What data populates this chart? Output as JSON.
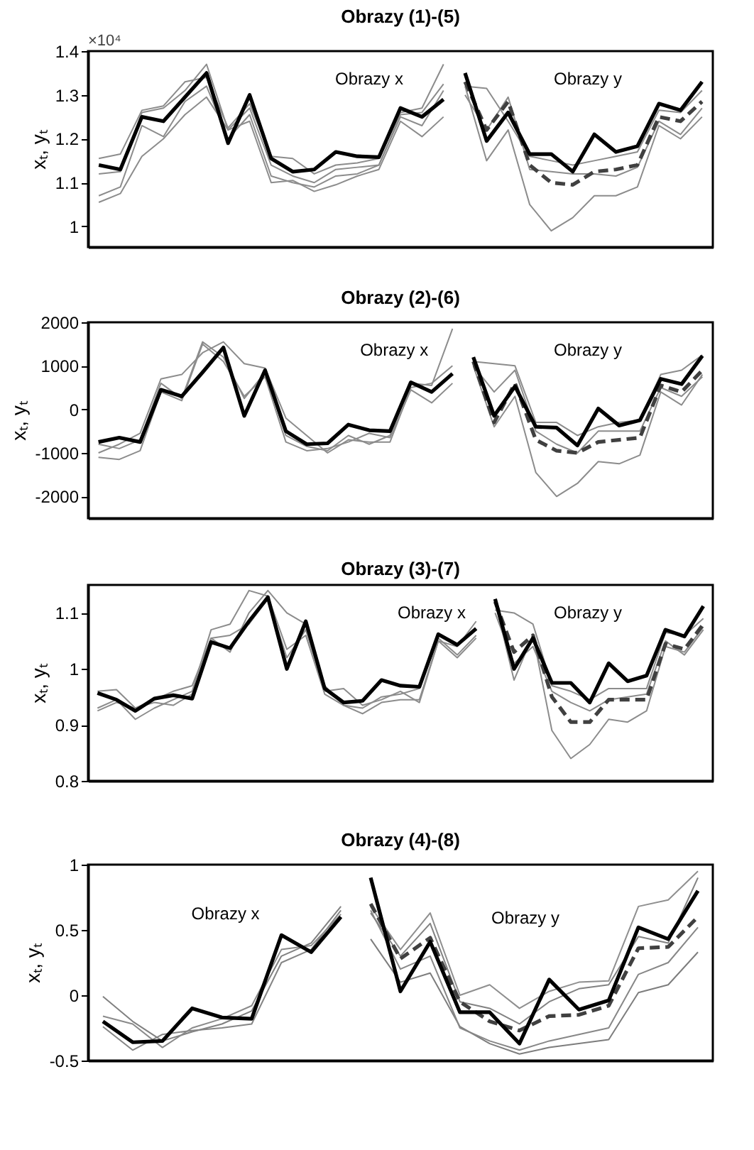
{
  "chart_data": [
    {
      "type": "line",
      "title": "Obrazy (1)-(5)",
      "ylabel": "xₜ, yₜ",
      "annotations": [
        "Obrazy x",
        "Obrazy y",
        "×10⁴"
      ],
      "categories": [
        null,
        null,
        null,
        null,
        null,
        null,
        null,
        null,
        null,
        null,
        null,
        null,
        null,
        null,
        null,
        null,
        null,
        null,
        null,
        null,
        null,
        null,
        null,
        null,
        null,
        null,
        null,
        null,
        null
      ],
      "ylim": [
        0.953,
        1.4
      ],
      "yticks": [
        1,
        1.1,
        1.2,
        1.3,
        1.4
      ],
      "tick_labels": "y",
      "grid": false,
      "series": [
        {
          "color": "#8c8c8c",
          "values": [
            1.155,
            1.165,
            1.265,
            1.275,
            1.33,
            1.34,
            1.225,
            1.28,
            1.16,
            1.155,
            1.12,
            1.14,
            1.145,
            1.155,
            1.26,
            1.27,
            1.37,
            null,
            null,
            null,
            null,
            null,
            null,
            null,
            null,
            null,
            null,
            null,
            null
          ]
        },
        {
          "color": "#8c8c8c",
          "values": [
            1.055,
            1.075,
            1.16,
            1.2,
            1.255,
            1.295,
            1.22,
            1.24,
            1.1,
            1.105,
            1.08,
            1.095,
            1.115,
            1.13,
            1.24,
            1.205,
            1.25,
            null,
            null,
            null,
            null,
            null,
            null,
            null,
            null,
            null,
            null,
            null,
            null
          ]
        },
        {
          "color": "#8c8c8c",
          "values": [
            1.07,
            1.09,
            1.23,
            1.205,
            1.285,
            1.32,
            1.2,
            1.255,
            1.115,
            1.1,
            1.09,
            1.115,
            1.12,
            1.14,
            1.25,
            1.23,
            1.31,
            null,
            null,
            null,
            null,
            null,
            null,
            null,
            null,
            null,
            null,
            null,
            null
          ]
        },
        {
          "color": "#8c8c8c",
          "values": [
            1.12,
            1.125,
            1.26,
            1.27,
            1.31,
            1.37,
            1.22,
            1.27,
            1.14,
            1.115,
            1.1,
            1.13,
            1.135,
            1.14,
            1.255,
            1.26,
            1.325,
            null,
            null,
            null,
            null,
            null,
            null,
            null,
            null,
            null,
            null,
            null,
            null
          ]
        },
        {
          "color": "#8c8c8c",
          "values": [
            null,
            null,
            null,
            null,
            null,
            null,
            null,
            null,
            null,
            null,
            null,
            null,
            null,
            null,
            null,
            null,
            null,
            1.32,
            1.15,
            1.22,
            1.05,
            0.99,
            1.02,
            1.07,
            1.07,
            1.09,
            1.23,
            1.2,
            1.25
          ]
        },
        {
          "color": "#8c8c8c",
          "values": [
            null,
            null,
            null,
            null,
            null,
            null,
            null,
            null,
            null,
            null,
            null,
            null,
            null,
            null,
            null,
            null,
            null,
            1.32,
            1.315,
            1.24,
            1.16,
            1.15,
            1.14,
            1.15,
            1.16,
            1.17,
            1.265,
            1.26,
            1.31
          ]
        },
        {
          "color": "#8c8c8c",
          "values": [
            null,
            null,
            null,
            null,
            null,
            null,
            null,
            null,
            null,
            null,
            null,
            null,
            null,
            null,
            null,
            null,
            null,
            1.3,
            1.22,
            1.295,
            1.13,
            1.125,
            1.12,
            1.12,
            1.115,
            1.135,
            1.24,
            1.21,
            1.27
          ]
        },
        {
          "color": "#404040",
          "line_style": "dashed",
          "values": [
            null,
            null,
            null,
            null,
            null,
            null,
            null,
            null,
            null,
            null,
            null,
            null,
            null,
            null,
            null,
            null,
            null,
            1.33,
            1.22,
            1.285,
            1.14,
            1.1,
            1.095,
            1.125,
            1.13,
            1.14,
            1.25,
            1.24,
            1.285
          ]
        },
        {
          "color": "#000000",
          "values": [
            1.14,
            1.13,
            1.25,
            1.24,
            1.295,
            1.35,
            1.19,
            1.3,
            1.155,
            1.125,
            1.13,
            1.17,
            1.16,
            1.158,
            1.27,
            1.25,
            1.29,
            null,
            null,
            null,
            null,
            null,
            null,
            null,
            null,
            null,
            null,
            null,
            null
          ]
        },
        {
          "color": "#000000",
          "values": [
            null,
            null,
            null,
            null,
            null,
            null,
            null,
            null,
            null,
            null,
            null,
            null,
            null,
            null,
            null,
            null,
            null,
            1.35,
            1.195,
            1.26,
            1.165,
            1.165,
            1.125,
            1.21,
            1.17,
            1.183,
            1.28,
            1.265,
            1.33
          ]
        }
      ]
    },
    {
      "type": "line",
      "title": "Obrazy (2)-(6)",
      "ylabel": "xₜ, yₜ",
      "annotations": [
        "Obrazy x",
        "Obrazy y"
      ],
      "categories": [
        null,
        null,
        null,
        null,
        null,
        null,
        null,
        null,
        null,
        null,
        null,
        null,
        null,
        null,
        null,
        null,
        null,
        null,
        null,
        null,
        null,
        null,
        null,
        null,
        null,
        null,
        null,
        null,
        null,
        null
      ],
      "ylim": [
        -2500,
        2000
      ],
      "yticks": [
        -2000,
        -1000,
        0,
        1000,
        2000
      ],
      "tick_labels": "y",
      "grid": false,
      "series": [
        {
          "color": "#8c8c8c",
          "values": [
            -1000,
            -800,
            -550,
            700,
            800,
            1300,
            1550,
            1050,
            950,
            -200,
            -600,
            -1000,
            -700,
            -750,
            -750,
            500,
            600,
            1000,
            null,
            null,
            null,
            null,
            null,
            null,
            null,
            null,
            null,
            null,
            null,
            null
          ]
        },
        {
          "color": "#8c8c8c",
          "values": [
            -1100,
            -1150,
            -950,
            400,
            200,
            1500,
            1100,
            300,
            750,
            -750,
            -950,
            -900,
            -750,
            -550,
            -650,
            450,
            150,
            600,
            null,
            null,
            null,
            null,
            null,
            null,
            null,
            null,
            null,
            null,
            null,
            null
          ]
        },
        {
          "color": "#8c8c8c",
          "values": [
            -800,
            -900,
            -700,
            600,
            250,
            1550,
            1200,
            250,
            850,
            -600,
            -850,
            -950,
            -600,
            -800,
            -600,
            600,
            550,
            1850,
            null,
            null,
            null,
            null,
            null,
            null,
            null,
            null,
            null,
            null,
            null,
            null
          ]
        },
        {
          "color": "#8c8c8c",
          "values": [
            null,
            null,
            null,
            null,
            null,
            null,
            null,
            null,
            null,
            null,
            null,
            null,
            null,
            null,
            null,
            null,
            null,
            null,
            1000,
            -400,
            300,
            -1450,
            -2000,
            -1700,
            -1200,
            -1250,
            -1050,
            400,
            100,
            800
          ]
        },
        {
          "color": "#8c8c8c",
          "values": [
            null,
            null,
            null,
            null,
            null,
            null,
            null,
            null,
            null,
            null,
            null,
            null,
            null,
            null,
            null,
            null,
            null,
            null,
            1100,
            1050,
            1000,
            -300,
            -300,
            -600,
            -400,
            -300,
            -250,
            800,
            900,
            1250
          ]
        },
        {
          "color": "#8c8c8c",
          "values": [
            null,
            null,
            null,
            null,
            null,
            null,
            null,
            null,
            null,
            null,
            null,
            null,
            null,
            null,
            null,
            null,
            null,
            null,
            1000,
            400,
            900,
            -500,
            -800,
            -1000,
            -500,
            -500,
            -500,
            500,
            300,
            750
          ]
        },
        {
          "color": "#404040",
          "line_style": "dashed",
          "values": [
            null,
            null,
            null,
            null,
            null,
            null,
            null,
            null,
            null,
            null,
            null,
            null,
            null,
            null,
            null,
            null,
            null,
            null,
            1100,
            -300,
            600,
            -700,
            -950,
            -1000,
            -750,
            -700,
            -650,
            550,
            400,
            900
          ]
        },
        {
          "color": "#000000",
          "values": [
            -750,
            -650,
            -750,
            450,
            300,
            850,
            1420,
            -150,
            900,
            -500,
            -800,
            -780,
            -350,
            -480,
            -500,
            620,
            400,
            820,
            null,
            null,
            null,
            null,
            null,
            null,
            null,
            null,
            null,
            null,
            null,
            null
          ]
        },
        {
          "color": "#000000",
          "values": [
            null,
            null,
            null,
            null,
            null,
            null,
            null,
            null,
            null,
            null,
            null,
            null,
            null,
            null,
            null,
            null,
            null,
            null,
            1200,
            -150,
            530,
            -400,
            -420,
            -830,
            20,
            -370,
            -250,
            700,
            580,
            1230
          ]
        }
      ]
    },
    {
      "type": "line",
      "title": "Obrazy (3)-(7)",
      "ylabel": "xₜ, yₜ",
      "annotations": [
        "Obrazy x",
        "Obrazy y"
      ],
      "categories": [
        null,
        null,
        null,
        null,
        null,
        null,
        null,
        null,
        null,
        null,
        null,
        null,
        null,
        null,
        null,
        null,
        null,
        null,
        null,
        null,
        null,
        null,
        null,
        null,
        null,
        null,
        null,
        null,
        null,
        null,
        null,
        null,
        null
      ],
      "ylim": [
        0.8,
        1.15
      ],
      "yticks": [
        0.8,
        0.9,
        1,
        1.1
      ],
      "tick_labels": "y",
      "grid": false,
      "series": [
        {
          "color": "#8c8c8c",
          "values": [
            0.93,
            0.945,
            0.91,
            0.93,
            0.945,
            0.96,
            1.07,
            1.08,
            1.14,
            1.13,
            1.035,
            1.06,
            0.955,
            0.935,
            0.92,
            0.94,
            0.945,
            0.945,
            1.05,
            1.04,
            1.085,
            null,
            null,
            null,
            null,
            null,
            null,
            null,
            null,
            null,
            null,
            null,
            null
          ]
        },
        {
          "color": "#8c8c8c",
          "values": [
            0.96,
            0.963,
            0.93,
            0.94,
            0.935,
            0.955,
            1.055,
            1.03,
            1.1,
            1.14,
            1.1,
            1.08,
            0.97,
            0.935,
            0.93,
            0.95,
            0.955,
            0.965,
            1.055,
            1.025,
            1.06,
            null,
            null,
            null,
            null,
            null,
            null,
            null,
            null,
            null,
            null,
            null,
            null
          ]
        },
        {
          "color": "#8c8c8c",
          "values": [
            0.925,
            0.94,
            0.93,
            0.945,
            0.96,
            0.97,
            1.055,
            1.06,
            1.08,
            1.125,
            1.02,
            1.07,
            0.96,
            0.965,
            0.935,
            0.945,
            0.96,
            0.94,
            1.05,
            1.02,
            1.055,
            null,
            null,
            null,
            null,
            null,
            null,
            null,
            null,
            null,
            null,
            null,
            null
          ]
        },
        {
          "color": "#8c8c8c",
          "values": [
            null,
            null,
            null,
            null,
            null,
            null,
            null,
            null,
            null,
            null,
            null,
            null,
            null,
            null,
            null,
            null,
            null,
            null,
            null,
            null,
            null,
            1.12,
            0.98,
            1.06,
            0.89,
            0.84,
            0.865,
            0.91,
            0.905,
            0.925,
            1.04,
            1.03,
            1.075
          ]
        },
        {
          "color": "#8c8c8c",
          "values": [
            null,
            null,
            null,
            null,
            null,
            null,
            null,
            null,
            null,
            null,
            null,
            null,
            null,
            null,
            null,
            null,
            null,
            null,
            null,
            null,
            null,
            1.105,
            1.1,
            1.08,
            0.97,
            0.96,
            0.945,
            0.965,
            0.965,
            0.965,
            1.065,
            1.06,
            1.09
          ]
        },
        {
          "color": "#8c8c8c",
          "values": [
            null,
            null,
            null,
            null,
            null,
            null,
            null,
            null,
            null,
            null,
            null,
            null,
            null,
            null,
            null,
            null,
            null,
            null,
            null,
            null,
            null,
            1.1,
            1.01,
            1.04,
            0.96,
            0.94,
            0.925,
            0.945,
            0.95,
            0.955,
            1.05,
            1.025,
            1.07
          ]
        },
        {
          "color": "#404040",
          "line_style": "dashed",
          "values": [
            null,
            null,
            null,
            null,
            null,
            null,
            null,
            null,
            null,
            null,
            null,
            null,
            null,
            null,
            null,
            null,
            null,
            null,
            null,
            null,
            null,
            1.12,
            1.03,
            1.06,
            0.95,
            0.905,
            0.905,
            0.945,
            0.945,
            0.945,
            1.045,
            1.035,
            1.08
          ]
        },
        {
          "color": "#000000",
          "values": [
            0.957,
            0.945,
            0.925,
            0.947,
            0.953,
            0.947,
            1.048,
            1.037,
            1.085,
            1.128,
            1.0,
            1.085,
            0.965,
            0.94,
            0.943,
            0.98,
            0.97,
            0.968,
            1.062,
            1.043,
            1.072,
            null,
            null,
            null,
            null,
            null,
            null,
            null,
            null,
            null,
            null,
            null,
            null
          ]
        },
        {
          "color": "#000000",
          "values": [
            null,
            null,
            null,
            null,
            null,
            null,
            null,
            null,
            null,
            null,
            null,
            null,
            null,
            null,
            null,
            null,
            null,
            null,
            null,
            null,
            null,
            1.125,
            1.0,
            1.055,
            0.975,
            0.975,
            0.94,
            1.01,
            0.978,
            0.988,
            1.07,
            1.058,
            1.112
          ]
        }
      ]
    },
    {
      "type": "line",
      "title": "Obrazy (4)-(8)",
      "ylabel": "xₜ, yₜ",
      "annotations": [
        "Obrazy x",
        "Obrazy y"
      ],
      "categories": [
        null,
        null,
        null,
        null,
        null,
        null,
        null,
        null,
        null,
        null,
        null,
        null,
        null,
        null,
        null,
        null,
        null,
        null,
        null,
        null,
        null
      ],
      "ylim": [
        -0.5,
        1
      ],
      "yticks": [
        -0.5,
        0,
        0.5,
        1
      ],
      "tick_labels": "y",
      "grid": false,
      "series": [
        {
          "color": "#808080",
          "values": [
            -0.01,
            -0.2,
            -0.35,
            -0.28,
            -0.22,
            -0.12,
            0.3,
            0.4,
            0.68,
            null,
            null,
            null,
            null,
            null,
            null,
            null,
            null,
            null,
            null,
            null,
            null
          ]
        },
        {
          "color": "#858585",
          "values": [
            -0.24,
            -0.42,
            -0.3,
            -0.27,
            -0.25,
            -0.22,
            0.25,
            0.35,
            0.65,
            null,
            null,
            null,
            null,
            null,
            null,
            null,
            null,
            null,
            null,
            null,
            null
          ]
        },
        {
          "color": "#8a8a8a",
          "values": [
            -0.16,
            -0.22,
            -0.4,
            -0.25,
            -0.18,
            -0.08,
            0.35,
            0.38,
            0.62,
            null,
            null,
            null,
            null,
            null,
            null,
            null,
            null,
            null,
            null,
            null,
            null
          ]
        },
        {
          "color": "#7d7d7d",
          "values": [
            null,
            null,
            null,
            null,
            null,
            null,
            null,
            null,
            null,
            0.43,
            0.1,
            0.17,
            -0.24,
            -0.37,
            -0.45,
            -0.4,
            -0.37,
            -0.34,
            0.02,
            0.08,
            0.33
          ]
        },
        {
          "color": "#8f8f8f",
          "values": [
            null,
            null,
            null,
            null,
            null,
            null,
            null,
            null,
            null,
            0.68,
            0.35,
            0.63,
            0.0,
            0.08,
            -0.1,
            0.03,
            0.1,
            0.11,
            0.68,
            0.73,
            0.95
          ]
        },
        {
          "color": "#878787",
          "values": [
            null,
            null,
            null,
            null,
            null,
            null,
            null,
            null,
            null,
            0.65,
            0.2,
            0.3,
            -0.25,
            -0.35,
            -0.42,
            -0.35,
            -0.3,
            -0.25,
            0.16,
            0.25,
            0.52
          ]
        },
        {
          "color": "#828282",
          "values": [
            null,
            null,
            null,
            null,
            null,
            null,
            null,
            null,
            null,
            0.63,
            0.3,
            0.55,
            -0.05,
            -0.1,
            -0.22,
            -0.05,
            0.05,
            0.08,
            0.45,
            0.4,
            0.9
          ]
        },
        {
          "color": "#404040",
          "line_style": "dashed",
          "values": [
            null,
            null,
            null,
            null,
            null,
            null,
            null,
            null,
            null,
            0.7,
            0.28,
            0.44,
            -0.05,
            -0.2,
            -0.27,
            -0.16,
            -0.15,
            -0.08,
            0.36,
            0.37,
            0.6
          ]
        },
        {
          "color": "#000000",
          "values": [
            -0.2,
            -0.36,
            -0.35,
            -0.1,
            -0.17,
            -0.18,
            0.46,
            0.33,
            0.6,
            null,
            null,
            null,
            null,
            null,
            null,
            null,
            null,
            null,
            null,
            null,
            null
          ]
        },
        {
          "color": "#000000",
          "values": [
            null,
            null,
            null,
            null,
            null,
            null,
            null,
            null,
            null,
            0.9,
            0.03,
            0.41,
            -0.13,
            -0.13,
            -0.37,
            0.12,
            -0.11,
            -0.04,
            0.52,
            0.43,
            0.8
          ]
        }
      ]
    }
  ]
}
